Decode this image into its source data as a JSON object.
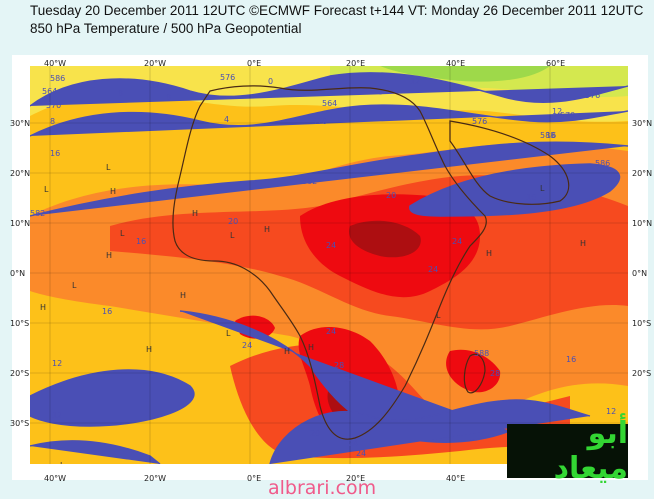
{
  "header": {
    "line1": "Tuesday 20 December 2011 12UTC ©ECMWF Forecast t+144 VT: Monday 26 December 2011 12UTC",
    "line2": "850 hPa Temperature / 500 hPa Geopotential"
  },
  "axes": {
    "lon_ticks": [
      "40°W",
      "20°W",
      "0°E",
      "20°E",
      "40°E",
      "60°E"
    ],
    "lat_ticks": [
      "30°N",
      "20°N",
      "10°N",
      "0°N",
      "10°S",
      "20°S",
      "30°S"
    ]
  },
  "contours": {
    "geopotential_labels": [
      "576",
      "570",
      "564",
      "582",
      "586",
      "588",
      "576",
      "570",
      "564",
      "582",
      "586",
      "588",
      "576",
      "570"
    ],
    "temperature_labels": [
      "16",
      "16",
      "20",
      "24",
      "24",
      "24",
      "24",
      "24",
      "28",
      "28",
      "16",
      "12",
      "12",
      "16",
      "20",
      "8",
      "8",
      "4",
      "0",
      "12",
      "12",
      "16",
      "16",
      "20",
      "24",
      "24",
      "24",
      "12",
      "8",
      "12"
    ]
  },
  "symbols": {
    "high": "H",
    "low": "L"
  },
  "colors": {
    "temp_ge_28": "#ad0e11",
    "temp_24_28": "#ee0a10",
    "temp_20_24": "#f64a1f",
    "temp_16_20": "#fb8a2a",
    "temp_12_16": "#fdc119",
    "temp_8_12": "#f8e34b",
    "temp_4_8": "#d4e84f",
    "temp_0_4": "#9ed94a",
    "contour": "#4a4fb5",
    "coastline": "#4a2a14"
  },
  "watermark": {
    "logo": "أبو ميعاد",
    "url": "albrari.com"
  }
}
